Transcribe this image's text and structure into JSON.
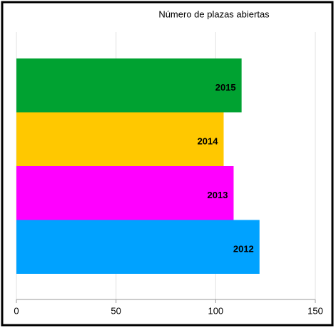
{
  "chart_data": {
    "type": "hbar",
    "title": "Número de plazas abiertas",
    "categories": [
      "2015",
      "2014",
      "2013",
      "2012"
    ],
    "values": [
      113,
      104,
      109,
      122
    ],
    "colors": [
      "#00a231",
      "#ffc800",
      "#ff00ff",
      "#00a2ff"
    ],
    "xlim": [
      0,
      150
    ],
    "xticks": [
      0,
      50,
      100,
      150
    ],
    "grid": true
  }
}
